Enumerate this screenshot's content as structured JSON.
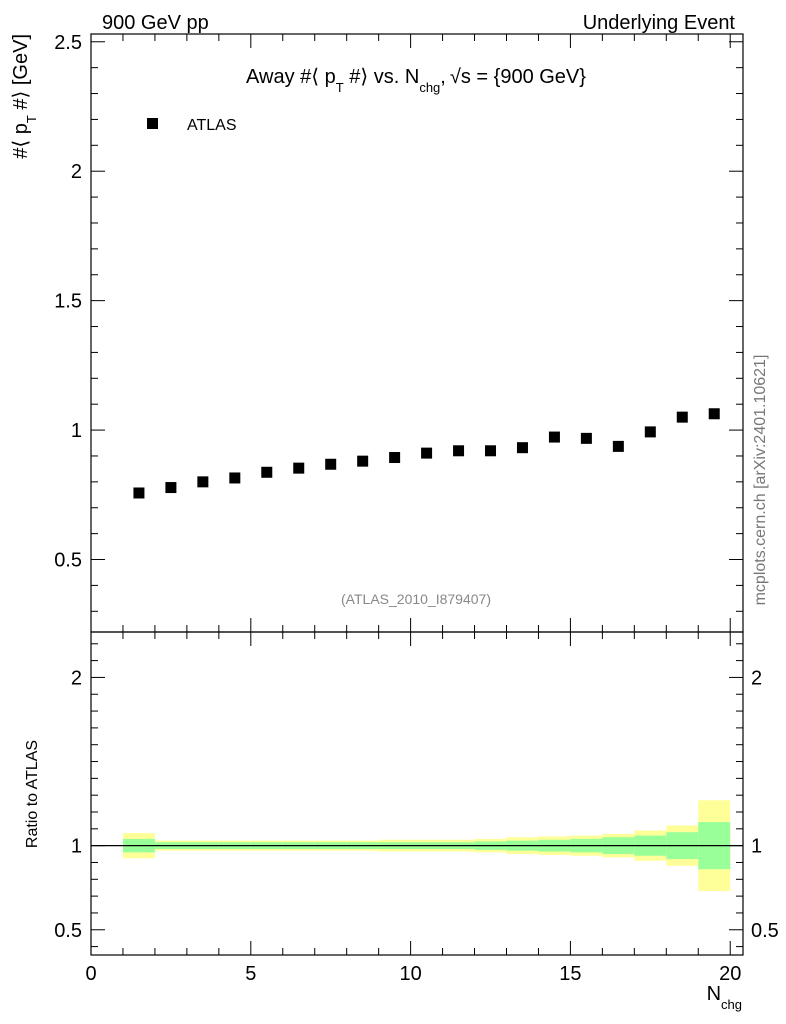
{
  "header": {
    "left_label": "900 GeV pp",
    "right_label": "Underlying Event"
  },
  "watermark": "mcplots.cern.ch [arXiv:2401.10621]",
  "chart_data": [
    {
      "type": "scatter",
      "title": "Away #⟨ p_T #⟩ vs. N_chg, √s = {900 GeV}",
      "title_parts": {
        "lead": "Away #⟨ p",
        "sub_t": "T",
        "mid": " #⟩ vs. N",
        "sub_chg": "chg",
        "comma": ",",
        "sqrt_sign": "√",
        "tail": "s = {900 GeV}"
      },
      "ylabel_parts": {
        "lead": "#⟨ p",
        "sub": "T",
        "tail": " #⟩ [GeV]"
      },
      "xlabel_parts": {
        "main": "N",
        "sub": "chg"
      },
      "analysis_label": "(ATLAS_2010_I879407)",
      "legend": {
        "entries": [
          "ATLAS"
        ],
        "placement": "top-left"
      },
      "xlim": [
        0,
        20.4
      ],
      "ylim": [
        0.22,
        2.53
      ],
      "yticks": [
        0.5,
        1,
        1.5,
        2,
        2.5
      ],
      "ytick_labels": [
        "0.5",
        "1",
        "1.5",
        "2",
        "2.5"
      ],
      "series": [
        {
          "name": "ATLAS",
          "x": [
            1.5,
            2.5,
            3.5,
            4.5,
            5.5,
            6.5,
            7.5,
            8.5,
            9.5,
            10.5,
            11.5,
            12.5,
            13.5,
            14.5,
            15.5,
            16.5,
            17.5,
            18.5,
            19.5
          ],
          "y": [
            0.757,
            0.778,
            0.8,
            0.815,
            0.837,
            0.853,
            0.868,
            0.88,
            0.894,
            0.911,
            0.92,
            0.92,
            0.932,
            0.973,
            0.968,
            0.937,
            0.993,
            1.05,
            1.063
          ]
        }
      ]
    },
    {
      "type": "area",
      "ylabel": "Ratio to ATLAS",
      "xlim": [
        0,
        20.4
      ],
      "ylim": [
        0.35,
        2.27
      ],
      "xticks": [
        0,
        5,
        10,
        15,
        20
      ],
      "xtick_labels": [
        "0",
        "5",
        "10",
        "15",
        "20"
      ],
      "yticks": [
        0.5,
        1,
        2
      ],
      "ytick_labels": [
        "0.5",
        "1",
        "2"
      ],
      "reference_line": 1,
      "bins_low": [
        1,
        2,
        3,
        4,
        5,
        6,
        7,
        8,
        9,
        10,
        11,
        12,
        13,
        14,
        15,
        16,
        17,
        18,
        19
      ],
      "bins_high": [
        2,
        3,
        4,
        5,
        6,
        7,
        8,
        9,
        10,
        11,
        12,
        13,
        14,
        15,
        16,
        17,
        18,
        19,
        20
      ],
      "stat_band_half": [
        0.04,
        0.02,
        0.02,
        0.02,
        0.02,
        0.02,
        0.02,
        0.02,
        0.02,
        0.02,
        0.02,
        0.025,
        0.03,
        0.035,
        0.04,
        0.05,
        0.06,
        0.08,
        0.14
      ],
      "total_band_half": [
        0.075,
        0.03,
        0.03,
        0.03,
        0.03,
        0.03,
        0.03,
        0.03,
        0.035,
        0.035,
        0.035,
        0.04,
        0.05,
        0.055,
        0.06,
        0.07,
        0.09,
        0.12,
        0.27
      ],
      "band_colors": {
        "total": "#ffff99",
        "stat": "#99ff99"
      }
    }
  ]
}
